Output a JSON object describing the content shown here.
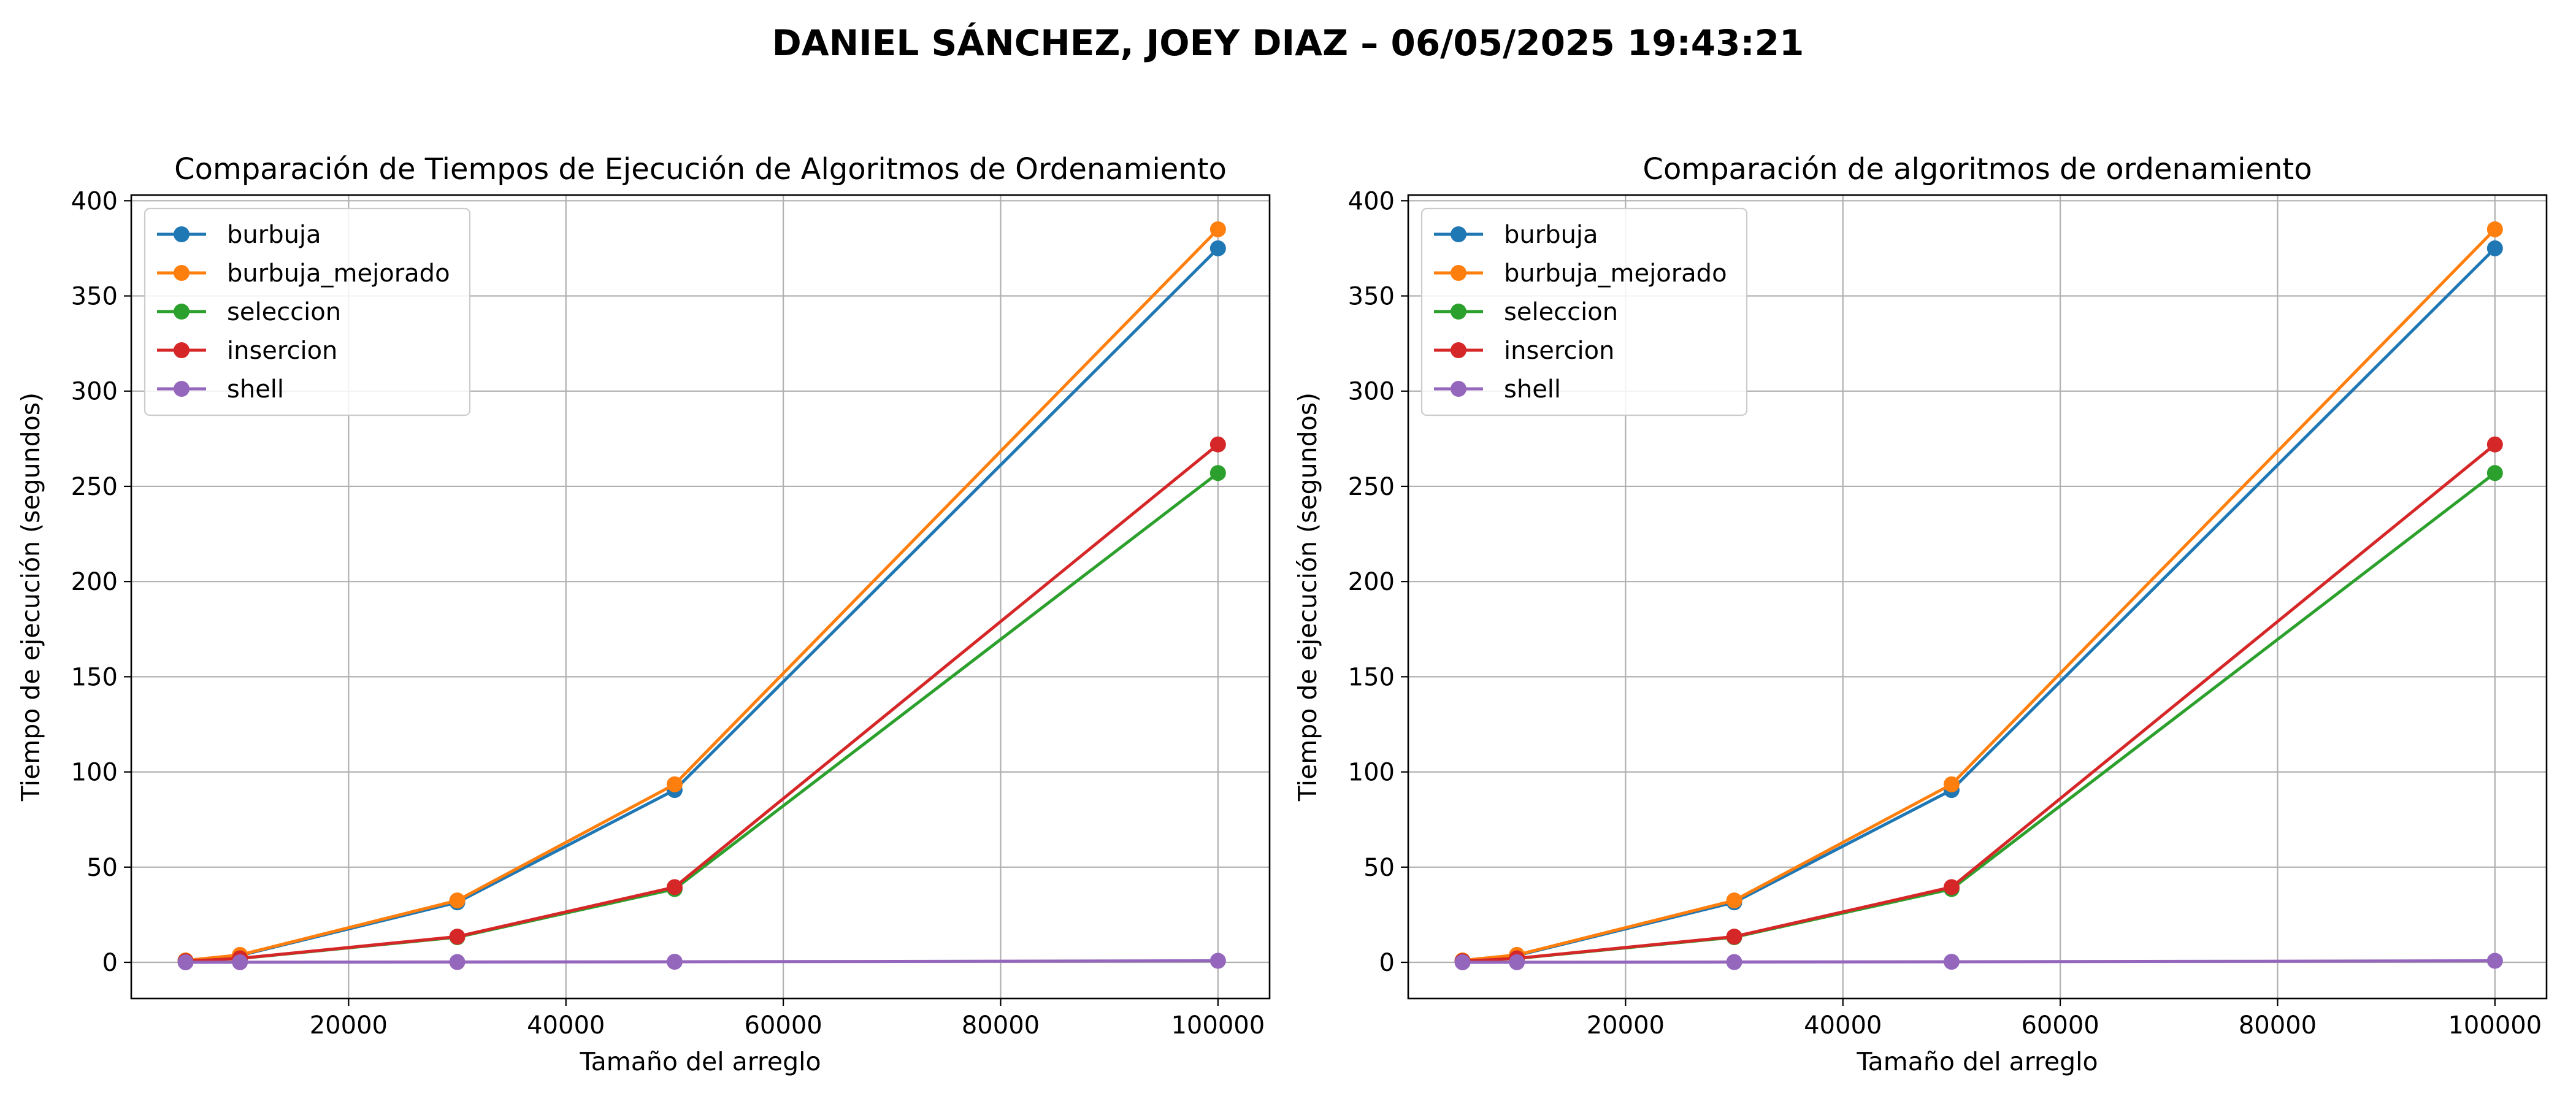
{
  "suptitle": "DANIEL SÁNCHEZ, JOEY DIAZ – 06/05/2025 19:43:21",
  "chart_data": [
    {
      "type": "line",
      "title": "Comparación de Tiempos de Ejecución de Algoritmos de Ordenamiento",
      "xlabel": "Tamaño del arreglo",
      "ylabel": "Tiempo de ejecución (segundos)",
      "x": [
        5000,
        10000,
        30000,
        50000,
        100000
      ],
      "xlim": [
        0,
        104750
      ],
      "ylim": [
        -19,
        403
      ],
      "xticks": [
        20000,
        40000,
        60000,
        80000,
        100000
      ],
      "xtick_labels": [
        "20000",
        "40000",
        "60000",
        "80000",
        "100000"
      ],
      "yticks": [
        0,
        50,
        100,
        150,
        200,
        250,
        300,
        350,
        400
      ],
      "ytick_labels": [
        "0",
        "50",
        "100",
        "150",
        "200",
        "250",
        "300",
        "350",
        "400"
      ],
      "grid": true,
      "legend": "upper-left",
      "series": [
        {
          "name": "burbuja",
          "color": "#1f77b4",
          "values": [
            0.9,
            3.6,
            31.5,
            90.5,
            375
          ]
        },
        {
          "name": "burbuja_mejorado",
          "color": "#ff7f0e",
          "values": [
            1.0,
            3.9,
            32.5,
            93.5,
            385
          ]
        },
        {
          "name": "seleccion",
          "color": "#2ca02c",
          "values": [
            0.6,
            2.0,
            13.2,
            38.5,
            257
          ]
        },
        {
          "name": "insercion",
          "color": "#d62728",
          "values": [
            0.6,
            2.1,
            13.5,
            39.5,
            272
          ]
        },
        {
          "name": "shell",
          "color": "#9467bd",
          "values": [
            0.01,
            0.03,
            0.15,
            0.3,
            0.8
          ]
        }
      ]
    },
    {
      "type": "line",
      "title": "Comparación de algoritmos de ordenamiento",
      "xlabel": "Tamaño del arreglo",
      "ylabel": "Tiempo de ejecución (segundos)",
      "x": [
        5000,
        10000,
        30000,
        50000,
        100000
      ],
      "xlim": [
        0,
        104750
      ],
      "ylim": [
        -19,
        403
      ],
      "xticks": [
        20000,
        40000,
        60000,
        80000,
        100000
      ],
      "xtick_labels": [
        "20000",
        "40000",
        "60000",
        "80000",
        "100000"
      ],
      "yticks": [
        0,
        50,
        100,
        150,
        200,
        250,
        300,
        350,
        400
      ],
      "ytick_labels": [
        "0",
        "50",
        "100",
        "150",
        "200",
        "250",
        "300",
        "350",
        "400"
      ],
      "grid": true,
      "legend": "upper-left",
      "series": [
        {
          "name": "burbuja",
          "color": "#1f77b4",
          "values": [
            0.9,
            3.6,
            31.5,
            90.5,
            375
          ]
        },
        {
          "name": "burbuja_mejorado",
          "color": "#ff7f0e",
          "values": [
            1.0,
            3.9,
            32.5,
            93.5,
            385
          ]
        },
        {
          "name": "seleccion",
          "color": "#2ca02c",
          "values": [
            0.6,
            2.0,
            13.2,
            38.5,
            257
          ]
        },
        {
          "name": "insercion",
          "color": "#d62728",
          "values": [
            0.6,
            2.1,
            13.5,
            39.5,
            272
          ]
        },
        {
          "name": "shell",
          "color": "#9467bd",
          "values": [
            0.01,
            0.03,
            0.15,
            0.3,
            0.8
          ]
        }
      ]
    }
  ]
}
